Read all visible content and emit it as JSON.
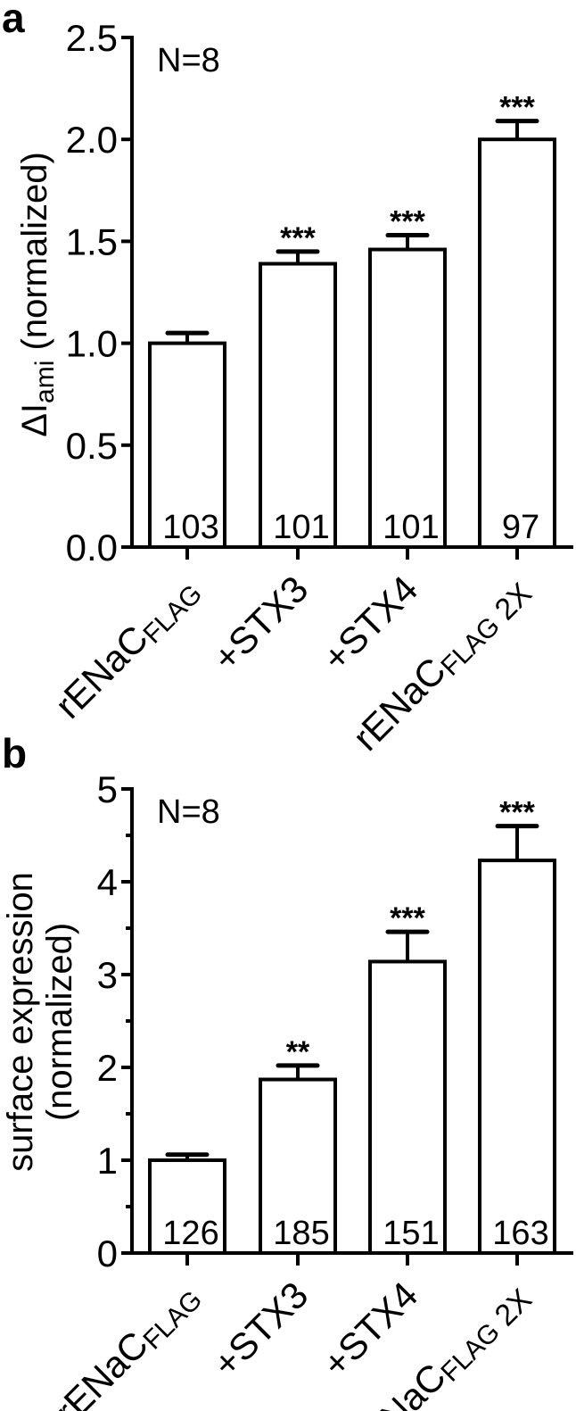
{
  "chart_data": [
    {
      "type": "bar",
      "panel_label": "a",
      "annotation": "N=8",
      "ylabel": {
        "main": "ΔI",
        "sub": "ami",
        "rest": " (normalized)"
      },
      "ylabel_lines": [],
      "ylim": [
        0,
        2.5
      ],
      "yticks": [
        0,
        0.5,
        1.0,
        1.5,
        2.0,
        2.5
      ],
      "ytick_labels": [
        "0.0",
        "0.5",
        "1.0",
        "1.5",
        "2.0",
        "2.5"
      ],
      "minor_ticks": false,
      "categories": [
        {
          "main": "rENaC",
          "sub": "FLAG",
          "suffix": ""
        },
        {
          "main": "+STX3",
          "sub": "",
          "suffix": ""
        },
        {
          "main": "+STX4",
          "sub": "",
          "suffix": ""
        },
        {
          "main": "rENaC",
          "sub": "FLAG",
          "suffix": " 2X"
        }
      ],
      "values": [
        1.0,
        1.39,
        1.46,
        2.0
      ],
      "errors": [
        0.05,
        0.06,
        0.07,
        0.09
      ],
      "counts": [
        "103",
        "101",
        "101",
        "97"
      ],
      "significance": [
        "",
        "***",
        "***",
        "***"
      ]
    },
    {
      "type": "bar",
      "panel_label": "b",
      "annotation": "N=8",
      "ylabel": null,
      "ylabel_lines": [
        "surface expression",
        "(normalized)"
      ],
      "ylim": [
        0,
        5
      ],
      "yticks": [
        0,
        1,
        2,
        3,
        4,
        5
      ],
      "ytick_labels": [
        "0",
        "1",
        "2",
        "3",
        "4",
        "5"
      ],
      "minor_ticks": true,
      "categories": [
        {
          "main": "rENaC",
          "sub": "FLAG",
          "suffix": ""
        },
        {
          "main": "+STX3",
          "sub": "",
          "suffix": ""
        },
        {
          "main": "+STX4",
          "sub": "",
          "suffix": ""
        },
        {
          "main": "rENaC",
          "sub": "FLAG",
          "suffix": " 2X"
        }
      ],
      "values": [
        1.0,
        1.87,
        3.14,
        4.23
      ],
      "errors": [
        0.06,
        0.15,
        0.32,
        0.37
      ],
      "counts": [
        "126",
        "185",
        "151",
        "163"
      ],
      "significance": [
        "",
        "**",
        "***",
        "***"
      ]
    }
  ]
}
